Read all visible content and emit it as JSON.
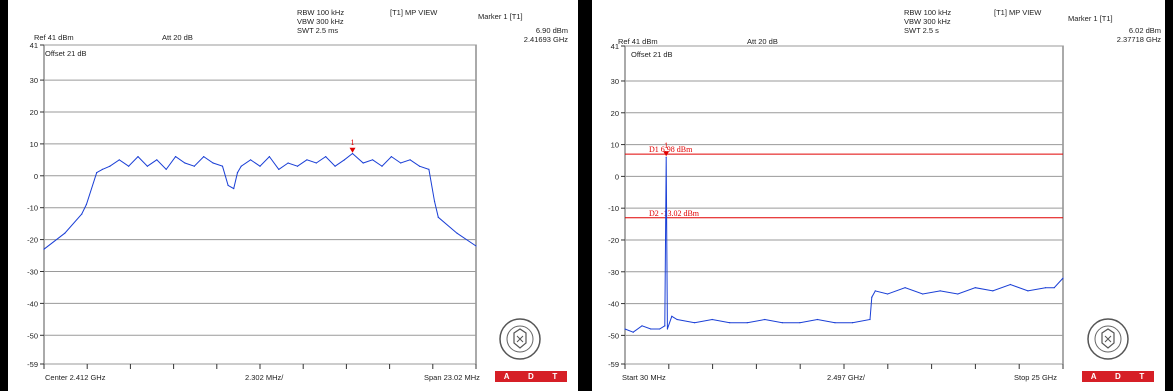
{
  "colors": {
    "trace": "#1a3fd6",
    "marker": "#e00000",
    "grid": "#9a9a9a",
    "adt_bg": "#d61f26",
    "background": "#000000"
  },
  "adt_letters": [
    "A",
    "D",
    "T"
  ],
  "panels": [
    {
      "header": {
        "ref": "Ref 41 dBm",
        "att": "Att  20 dB",
        "rbw": "RBW 100 kHz",
        "vbw": "VBW 300 kHz",
        "swt": "SWT 2.5 ms",
        "view": "[T1] MP VIEW",
        "marker_label": "Marker 1 [T1]",
        "marker_value": "6.90 dBm",
        "marker_freq": "2.41693 GHz",
        "offset": "Offset 21 dB"
      },
      "footer": {
        "left": "Center 2.412 GHz",
        "mid": "2.302 MHz/",
        "right": "Span 23.02 MHz"
      },
      "marker_mark": "1"
    },
    {
      "header": {
        "ref": "Ref 41 dBm",
        "att": "Att  20 dB",
        "rbw": "RBW 100 kHz",
        "vbw": "VBW 300 kHz",
        "swt": "SWT 2.5 s",
        "view": "[T1] MP VIEW",
        "marker_label": "Marker 1 [T1]",
        "marker_value": "6.02 dBm",
        "marker_freq": "2.37718 GHz",
        "offset": "Offset 21 dB"
      },
      "footer": {
        "left": "Start 30 MHz",
        "mid": "2.497 GHz/",
        "right": "Stop 25 GHz"
      },
      "marker_mark": "1",
      "lines": [
        {
          "label": "D1 6.98 dBm",
          "value": 6.98
        },
        {
          "label": "D2 -13.02 dBm",
          "value": -13.02
        }
      ]
    }
  ],
  "chart_data": [
    {
      "type": "line",
      "title": "",
      "xlabel": "",
      "ylabel": "",
      "x_unit": "GHz",
      "x_range": [
        2.40049,
        2.42351
      ],
      "ylim": [
        -59,
        41
      ],
      "y_ticks": [
        41,
        30,
        20,
        10,
        0,
        -10,
        -20,
        -30,
        -40,
        -50,
        -59
      ],
      "grid": true,
      "series": [
        {
          "x": [
            2.40049,
            2.4016,
            2.4025,
            2.40275,
            2.4033,
            2.4036,
            2.404,
            2.4045,
            2.405,
            2.4055,
            2.406,
            2.4065,
            2.407,
            2.4075,
            2.408,
            2.4085,
            2.409,
            2.4095,
            2.41,
            2.4103,
            2.4106,
            2.4108,
            2.411,
            2.4115,
            2.412,
            2.4125,
            2.413,
            2.4135,
            2.414,
            2.4145,
            2.415,
            2.4155,
            2.416,
            2.4165,
            2.41693,
            2.4175,
            2.418,
            2.4185,
            2.419,
            2.4195,
            2.42,
            2.4205,
            2.421,
            2.4213,
            2.4215,
            2.4225,
            2.42351
          ],
          "y": [
            -23,
            -18,
            -12,
            -9,
            1,
            2,
            3,
            5,
            3,
            6,
            3,
            5,
            2,
            6,
            4,
            3,
            6,
            4,
            3,
            -3,
            -4,
            1,
            3,
            5,
            3,
            6,
            2,
            4,
            3,
            5,
            4,
            6,
            3,
            5,
            7,
            4,
            5,
            3,
            6,
            4,
            5,
            3,
            2,
            -8,
            -13,
            -18,
            -22
          ]
        }
      ],
      "marker": {
        "label": "1",
        "x": 2.41693,
        "y": 6.9
      }
    },
    {
      "type": "line",
      "title": "",
      "xlabel": "",
      "ylabel": "",
      "x_unit": "GHz",
      "x_range": [
        0.03,
        25.0
      ],
      "ylim": [
        -59,
        41
      ],
      "y_ticks": [
        41,
        30,
        20,
        10,
        0,
        -10,
        -20,
        -30,
        -40,
        -50,
        -59
      ],
      "grid": true,
      "series": [
        {
          "x": [
            0.03,
            0.5,
            1.0,
            1.5,
            2.0,
            2.3,
            2.37718,
            2.45,
            2.7,
            3.0,
            4.0,
            5.0,
            6.0,
            7.0,
            8.0,
            9.0,
            10.0,
            11.0,
            12.0,
            13.0,
            14.0,
            14.1,
            14.3,
            15.0,
            16.0,
            17.0,
            18.0,
            19.0,
            20.0,
            21.0,
            22.0,
            23.0,
            24.0,
            24.5,
            25.0
          ],
          "y": [
            -48,
            -49,
            -47,
            -48,
            -48,
            -47,
            6.02,
            -48,
            -44,
            -45,
            -46,
            -45,
            -46,
            -46,
            -45,
            -46,
            -46,
            -45,
            -46,
            -46,
            -45,
            -38,
            -36,
            -37,
            -35,
            -37,
            -36,
            -37,
            -35,
            -36,
            -34,
            -36,
            -35,
            -35,
            -32
          ]
        }
      ],
      "marker": {
        "label": "1",
        "x": 2.37718,
        "y": 6.02
      },
      "reference_lines": [
        {
          "label": "D1 6.98 dBm",
          "y": 6.98
        },
        {
          "label": "D2 -13.02 dBm",
          "y": -13.02
        }
      ]
    }
  ]
}
